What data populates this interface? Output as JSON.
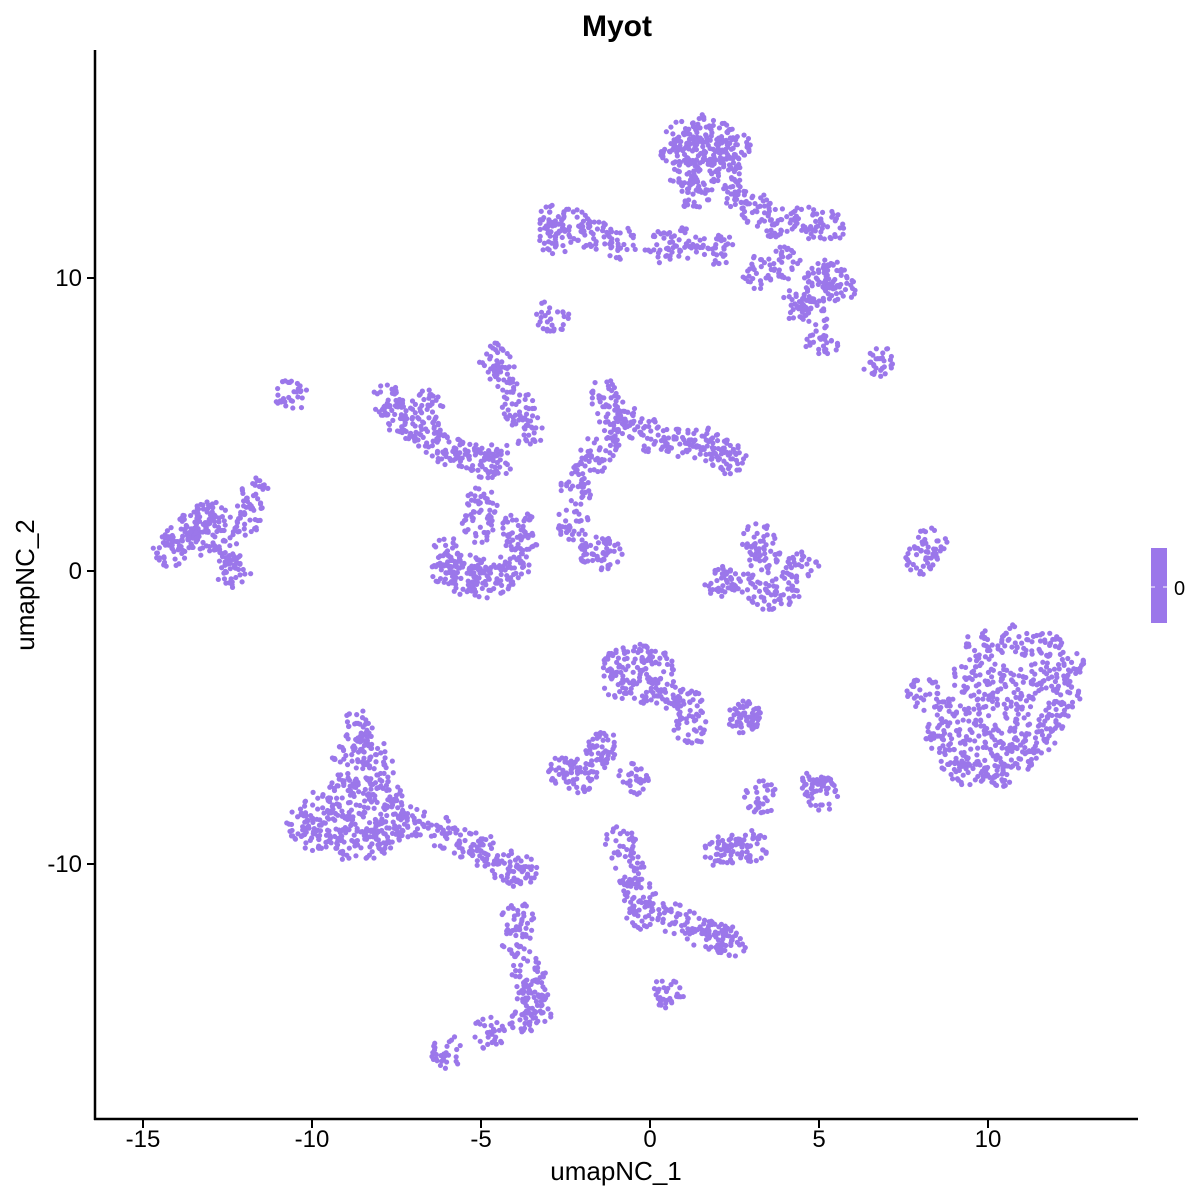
{
  "chart_data": {
    "type": "scatter",
    "title": "Myot",
    "xlabel": "umapNC_1",
    "ylabel": "umapNC_2",
    "xlim": [
      -16.5,
      14.5
    ],
    "ylim": [
      -18.5,
      17.7
    ],
    "xticks": [
      -15,
      -10,
      -5,
      0,
      5,
      10
    ],
    "yticks": [
      -10,
      0,
      10
    ],
    "xtick_labels": [
      "-15",
      "-10",
      "-5",
      "0",
      "5",
      "10"
    ],
    "ytick_labels": [
      "-10",
      "0",
      "10"
    ],
    "grid": false,
    "legend": {
      "placement": "right",
      "labels": [
        "0"
      ],
      "color": "#9b77ea"
    },
    "point_color": "#9b77ea",
    "points": [
      [
        0.9,
        14.9
      ],
      [
        1.5,
        15.0
      ],
      [
        2.1,
        14.8
      ],
      [
        0.8,
        14.2
      ],
      [
        1.4,
        14.3
      ],
      [
        2.0,
        14.2
      ],
      [
        2.5,
        14.5
      ],
      [
        1.0,
        13.6
      ],
      [
        1.6,
        13.5
      ],
      [
        2.2,
        13.6
      ],
      [
        1.3,
        12.9
      ],
      [
        2.6,
        12.9
      ],
      [
        3.2,
        12.3
      ],
      [
        3.8,
        11.9
      ],
      [
        4.6,
        11.9
      ],
      [
        5.3,
        11.8
      ],
      [
        -2.9,
        11.9
      ],
      [
        -2.3,
        11.8
      ],
      [
        -2.8,
        11.3
      ],
      [
        -1.6,
        11.4
      ],
      [
        -0.9,
        11.2
      ],
      [
        0.3,
        11.1
      ],
      [
        1.1,
        11.2
      ],
      [
        2.0,
        11.0
      ],
      [
        5.0,
        9.8
      ],
      [
        5.6,
        9.7
      ],
      [
        5.3,
        10.1
      ],
      [
        4.4,
        9.1
      ],
      [
        4.8,
        8.9
      ],
      [
        4.0,
        10.5
      ],
      [
        3.2,
        10.2
      ],
      [
        -2.9,
        8.7
      ],
      [
        -4.6,
        7.2
      ],
      [
        -4.3,
        6.6
      ],
      [
        -3.9,
        5.6
      ],
      [
        -3.6,
        4.8
      ],
      [
        -10.6,
        6.0
      ],
      [
        -7.8,
        5.8
      ],
      [
        -7.5,
        5.3
      ],
      [
        -7.0,
        5.0
      ],
      [
        -6.5,
        4.6
      ],
      [
        -6.0,
        4.2
      ],
      [
        -5.4,
        3.9
      ],
      [
        -4.9,
        3.7
      ],
      [
        -4.5,
        3.8
      ],
      [
        -6.6,
        5.6
      ],
      [
        -5.0,
        2.3
      ],
      [
        -5.1,
        1.5
      ],
      [
        -6.0,
        0.7
      ],
      [
        -6.1,
        0.1
      ],
      [
        -5.6,
        -0.3
      ],
      [
        -5.0,
        -0.4
      ],
      [
        -4.5,
        -0.2
      ],
      [
        -4.0,
        0.2
      ],
      [
        -3.8,
        0.9
      ],
      [
        -3.9,
        1.5
      ],
      [
        -5.3,
        0.1
      ],
      [
        -13.9,
        1.0
      ],
      [
        -13.5,
        1.6
      ],
      [
        -13.0,
        1.9
      ],
      [
        -14.2,
        0.7
      ],
      [
        -13.3,
        1.1
      ],
      [
        -12.8,
        1.3
      ],
      [
        -12.5,
        0.5
      ],
      [
        -12.3,
        -0.1
      ],
      [
        -12.0,
        1.8
      ],
      [
        -11.7,
        2.6
      ],
      [
        -1.3,
        6.0
      ],
      [
        -1.1,
        5.3
      ],
      [
        -0.6,
        5.0
      ],
      [
        -1.4,
        4.3
      ],
      [
        -1.8,
        3.7
      ],
      [
        -2.2,
        2.8
      ],
      [
        0.1,
        4.6
      ],
      [
        0.8,
        4.4
      ],
      [
        1.5,
        4.4
      ],
      [
        2.0,
        4.1
      ],
      [
        2.4,
        3.8
      ],
      [
        -2.3,
        1.6
      ],
      [
        -1.7,
        0.8
      ],
      [
        -1.3,
        0.6
      ],
      [
        3.2,
        1.1
      ],
      [
        3.4,
        0.5
      ],
      [
        2.6,
        -0.3
      ],
      [
        3.4,
        -0.8
      ],
      [
        4.0,
        -0.6
      ],
      [
        2.0,
        -0.4
      ],
      [
        4.5,
        0.1
      ],
      [
        8.0,
        0.4
      ],
      [
        8.3,
        0.9
      ],
      [
        9.8,
        -2.6
      ],
      [
        10.8,
        -2.4
      ],
      [
        11.7,
        -2.6
      ],
      [
        12.4,
        -3.3
      ],
      [
        9.4,
        -3.6
      ],
      [
        10.4,
        -3.6
      ],
      [
        11.4,
        -3.6
      ],
      [
        12.3,
        -4.2
      ],
      [
        8.9,
        -4.7
      ],
      [
        9.9,
        -4.6
      ],
      [
        10.9,
        -4.6
      ],
      [
        11.9,
        -4.9
      ],
      [
        8.6,
        -5.6
      ],
      [
        9.6,
        -5.6
      ],
      [
        10.6,
        -5.6
      ],
      [
        11.5,
        -5.7
      ],
      [
        9.0,
        -6.4
      ],
      [
        10.1,
        -6.5
      ],
      [
        11.0,
        -6.3
      ],
      [
        9.4,
        -6.9
      ],
      [
        10.4,
        -6.8
      ],
      [
        8.1,
        -4.2
      ],
      [
        -1.0,
        -3.1
      ],
      [
        -0.3,
        -3.0
      ],
      [
        0.2,
        -3.3
      ],
      [
        -0.9,
        -3.8
      ],
      [
        -0.1,
        -4.0
      ],
      [
        0.6,
        -4.2
      ],
      [
        1.1,
        -4.6
      ],
      [
        1.2,
        -5.4
      ],
      [
        2.8,
        -5.0
      ],
      [
        -8.6,
        -5.3
      ],
      [
        -8.3,
        -6.0
      ],
      [
        -8.9,
        -6.4
      ],
      [
        -8.0,
        -6.8
      ],
      [
        -9.1,
        -7.4
      ],
      [
        -8.5,
        -7.6
      ],
      [
        -7.8,
        -7.8
      ],
      [
        -9.8,
        -8.1
      ],
      [
        -9.2,
        -8.5
      ],
      [
        -8.4,
        -8.6
      ],
      [
        -7.6,
        -8.5
      ],
      [
        -9.9,
        -9.0
      ],
      [
        -9.1,
        -9.3
      ],
      [
        -8.3,
        -9.4
      ],
      [
        -7.8,
        -9.0
      ],
      [
        -10.3,
        -8.7
      ],
      [
        -7.0,
        -8.6
      ],
      [
        -6.2,
        -8.9
      ],
      [
        -5.4,
        -9.3
      ],
      [
        -4.8,
        -9.6
      ],
      [
        -4.2,
        -10.1
      ],
      [
        -3.8,
        -10.3
      ],
      [
        -2.6,
        -6.9
      ],
      [
        -2.1,
        -7.0
      ],
      [
        -1.7,
        -6.5
      ],
      [
        -1.4,
        -6.0
      ],
      [
        -0.5,
        -7.1
      ],
      [
        2.1,
        -9.6
      ],
      [
        2.6,
        -9.5
      ],
      [
        3.0,
        -9.4
      ],
      [
        3.3,
        -7.7
      ],
      [
        4.9,
        -7.3
      ],
      [
        5.1,
        -7.6
      ],
      [
        2.8,
        -5.0
      ],
      [
        -0.9,
        -9.3
      ],
      [
        -0.6,
        -10.2
      ],
      [
        -0.3,
        -11.0
      ],
      [
        -0.2,
        -11.7
      ],
      [
        0.7,
        -11.8
      ],
      [
        1.4,
        -12.2
      ],
      [
        2.0,
        -12.5
      ],
      [
        2.4,
        -12.7
      ],
      [
        0.5,
        -14.4
      ],
      [
        -3.9,
        -11.9
      ],
      [
        -3.9,
        -12.6
      ],
      [
        -3.6,
        -13.7
      ],
      [
        -3.5,
        -14.4
      ],
      [
        -3.4,
        -15.0
      ],
      [
        -3.7,
        -15.2
      ],
      [
        -6.0,
        -16.4
      ],
      [
        -4.8,
        -15.8
      ],
      [
        6.8,
        7.1
      ],
      [
        5.1,
        7.8
      ]
    ]
  }
}
